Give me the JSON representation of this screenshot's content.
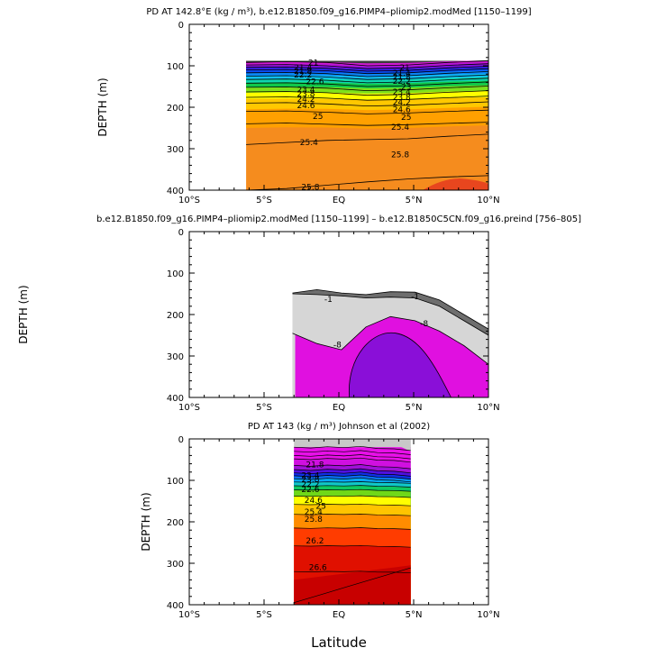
{
  "figure": {
    "xlabel": "Latitude"
  },
  "chart_data": [
    {
      "type": "contour",
      "title": "PD AT 142.8°E (kg / m³), b.e12.B1850.f09_g16.PIMP4–pliomip2.modMed [1150–1199]",
      "xlabel": "",
      "ylabel": "DEPTH (m)",
      "xlim": [
        -10,
        10
      ],
      "ylim": [
        400,
        0
      ],
      "xticks": [
        -10,
        -5,
        0,
        5,
        10
      ],
      "xtick_labels": [
        "10°S",
        "5°S",
        "EQ",
        "5°N",
        "10°N"
      ],
      "yticks": [
        0,
        100,
        200,
        300,
        400
      ],
      "ytick_labels": [
        "0",
        "100",
        "200",
        "300",
        "400"
      ],
      "data_xrange": [
        -6.2,
        10
      ],
      "top_depth": 88,
      "bands": [
        {
          "level": 21.0,
          "color": "#3c3c3c",
          "west": 92,
          "east": 88
        },
        {
          "level": 21.4,
          "color": "#d11ad1",
          "west": 96,
          "east": 93
        },
        {
          "level": 21.8,
          "color": "#b515d8",
          "west": 100,
          "east": 98
        },
        {
          "level": 22.2,
          "color": "#7f10e0",
          "west": 105,
          "east": 103
        },
        {
          "level": 22.6,
          "color": "#3422e6",
          "west": 111,
          "east": 108
        },
        {
          "level": 23.0,
          "color": "#0a4aee",
          "west": 117,
          "east": 113
        },
        {
          "level": 23.4,
          "color": "#0a86f5",
          "west": 124,
          "east": 120
        },
        {
          "level": 23.8,
          "color": "#0fc0f5",
          "west": 132,
          "east": 128
        },
        {
          "level": 24.2,
          "color": "#10d6b0",
          "west": 141,
          "east": 137
        },
        {
          "level": 24.6,
          "color": "#10c84a",
          "west": 152,
          "east": 148
        },
        {
          "level": 25.0,
          "color": "#7ee01c",
          "west": 165,
          "east": 161
        },
        {
          "level": 25.4,
          "color": "#ffff00",
          "west": 180,
          "east": 177
        },
        {
          "level": 25.8,
          "color": "#ffc800",
          "west": 205,
          "east": 200
        },
        {
          "level": 26.2,
          "color": "#ffa000",
          "west": 250,
          "east": 245
        }
      ],
      "deep_color": "#f58c1e",
      "lines": [
        {
          "depths": [
            92,
            90,
            92,
            100,
            98,
            92,
            88
          ]
        },
        {
          "depths": [
            98,
            97,
            100,
            107,
            105,
            99,
            95
          ]
        },
        {
          "depths": [
            104,
            103,
            106,
            113,
            111,
            105,
            101
          ]
        },
        {
          "depths": [
            110,
            109,
            112,
            119,
            117,
            111,
            107
          ]
        },
        {
          "depths": [
            117,
            116,
            119,
            126,
            124,
            118,
            114
          ]
        },
        {
          "depths": [
            125,
            124,
            127,
            133,
            131,
            126,
            122
          ]
        },
        {
          "depths": [
            133,
            132,
            135,
            141,
            139,
            134,
            130
          ]
        },
        {
          "depths": [
            142,
            141,
            144,
            150,
            148,
            143,
            139
          ]
        },
        {
          "depths": [
            152,
            151,
            154,
            160,
            158,
            153,
            149
          ]
        },
        {
          "depths": [
            163,
            162,
            165,
            171,
            169,
            164,
            160
          ]
        },
        {
          "depths": [
            176,
            175,
            178,
            183,
            181,
            177,
            173
          ]
        },
        {
          "depths": [
            190,
            189,
            192,
            197,
            195,
            191,
            187
          ]
        },
        {
          "depths": [
            210,
            209,
            212,
            216,
            214,
            210,
            207
          ]
        },
        {
          "depths": [
            240,
            238,
            241,
            244,
            242,
            239,
            236
          ]
        },
        {
          "depths": [
            290,
            285,
            280,
            278,
            276,
            270,
            265
          ]
        },
        {
          "depths": [
            400,
            396,
            388,
            380,
            373,
            368,
            365
          ]
        }
      ],
      "blob": {
        "color": "#e8461e"
      },
      "labels": [
        {
          "text": "21",
          "x": -1.7,
          "y": 92
        },
        {
          "text": "21.4",
          "x": -2.4,
          "y": 104
        },
        {
          "text": "21.8",
          "x": -2.4,
          "y": 113
        },
        {
          "text": "22.2",
          "x": -2.4,
          "y": 122
        },
        {
          "text": "22.6",
          "x": -1.6,
          "y": 138
        },
        {
          "text": "23.4",
          "x": -2.2,
          "y": 158
        },
        {
          "text": "23.8",
          "x": -2.2,
          "y": 167
        },
        {
          "text": "24.2",
          "x": -2.2,
          "y": 180
        },
        {
          "text": "24.6",
          "x": -2.2,
          "y": 196
        },
        {
          "text": "25",
          "x": -1.4,
          "y": 222
        },
        {
          "text": "25.4",
          "x": -2.0,
          "y": 285
        },
        {
          "text": "25.8",
          "x": -1.9,
          "y": 392
        },
        {
          "text": "21",
          "x": 4.4,
          "y": 104
        },
        {
          "text": "21.4",
          "x": 4.2,
          "y": 117
        },
        {
          "text": "21.8",
          "x": 4.2,
          "y": 127
        },
        {
          "text": "22.2",
          "x": 4.2,
          "y": 137
        },
        {
          "text": "23",
          "x": 4.5,
          "y": 151
        },
        {
          "text": "23.4",
          "x": 4.2,
          "y": 163
        },
        {
          "text": "23.8",
          "x": 4.2,
          "y": 176
        },
        {
          "text": "24.2",
          "x": 4.2,
          "y": 188
        },
        {
          "text": "24.6",
          "x": 4.2,
          "y": 205
        },
        {
          "text": "25",
          "x": 4.5,
          "y": 224
        },
        {
          "text": "25.4",
          "x": 4.1,
          "y": 248
        },
        {
          "text": "25.8",
          "x": 4.1,
          "y": 314
        }
      ]
    },
    {
      "type": "contour",
      "title": "b.e12.B1850.f09_g16.PIMP4–pliomip2.modMed [1150–1199] – b.e12.B1850C5CN.f09_g16.preind [756–805]",
      "xlabel": "",
      "ylabel": "DEPTH (m)",
      "xlim": [
        -10,
        10
      ],
      "ylim": [
        400,
        0
      ],
      "xticks": [
        -10,
        -5,
        0,
        5,
        10
      ],
      "xtick_labels": [
        "10°S",
        "5°S",
        "EQ",
        "5°N",
        "10°N"
      ],
      "yticks": [
        0,
        100,
        200,
        300,
        400
      ],
      "ytick_labels": [
        "0",
        "100",
        "200",
        "300",
        "400"
      ],
      "data_xrange": [
        -3.1,
        10
      ],
      "regions": [
        {
          "name": "0 to -1",
          "color": "#6e6e6e"
        },
        {
          "name": "-1 to -8",
          "color": "#d6d6d6"
        },
        {
          "name": "-8 to -16",
          "color": "#e010e0"
        },
        {
          "name": "below -16",
          "color": "#8a0fd8"
        }
      ],
      "contour_lines": [
        {
          "value": "-1",
          "depths": [
            150,
            152,
            155,
            160,
            158,
            160,
            180,
            215,
            250
          ]
        },
        {
          "value": "-8",
          "depths": [
            245,
            270,
            285,
            230,
            205,
            215,
            240,
            275,
            320
          ]
        }
      ],
      "labels": [
        {
          "text": "-1",
          "x": -0.7,
          "y": 163
        },
        {
          "text": "-1",
          "x": 5.1,
          "y": 157
        },
        {
          "text": "-8",
          "x": -0.1,
          "y": 273
        },
        {
          "text": "-8",
          "x": 5.7,
          "y": 222
        }
      ]
    },
    {
      "type": "contour",
      "title": "PD AT 143 (kg / m³) Johnson et al (2002)",
      "xlabel": "Latitude",
      "ylabel": "DEPTH (m)",
      "xlim": [
        -10,
        10
      ],
      "ylim": [
        400,
        0
      ],
      "xticks": [
        -10,
        -5,
        0,
        5,
        10
      ],
      "xtick_labels": [
        "10°S",
        "5°S",
        "EQ",
        "5°N",
        "10°N"
      ],
      "yticks": [
        0,
        100,
        200,
        300,
        400
      ],
      "ytick_labels": [
        "0",
        "100",
        "200",
        "300",
        "400"
      ],
      "data_xrange": [
        -3.0,
        4.8
      ],
      "surface_color": "#c8c8c8",
      "surface_depths": [
        8,
        5,
        6,
        4,
        4,
        6,
        12,
        30
      ],
      "deep_color": "#c80000",
      "bands": [
        {
          "level": 21.4,
          "color": "#e810e8"
        },
        {
          "level": 21.8,
          "color": "#d010e0"
        },
        {
          "level": 22.2,
          "color": "#a010d8"
        },
        {
          "level": 22.6,
          "color": "#5010e0"
        },
        {
          "level": 23.0,
          "color": "#1030e8"
        },
        {
          "level": 23.4,
          "color": "#0a6ef0"
        },
        {
          "level": 23.8,
          "color": "#08a8f2"
        },
        {
          "level": 24.2,
          "color": "#10c8c8"
        },
        {
          "level": 24.6,
          "color": "#10c860"
        },
        {
          "level": 25.0,
          "color": "#70d818"
        },
        {
          "level": 25.4,
          "color": "#ffff00"
        },
        {
          "level": 25.8,
          "color": "#ffc400"
        },
        {
          "level": 26.2,
          "color": "#ff8c00"
        },
        {
          "level": 26.6,
          "color": "#ff3c00"
        },
        {
          "level": 27.0,
          "color": "#e01000"
        }
      ],
      "band_depths": [
        48,
        64,
        74,
        82,
        89,
        96,
        104,
        113,
        123,
        138,
        158,
        182,
        215,
        258,
        320
      ],
      "labels": [
        {
          "text": "21.8",
          "x": -1.6,
          "y": 62
        },
        {
          "text": "23.4",
          "x": -1.9,
          "y": 88
        },
        {
          "text": "23.8",
          "x": -1.9,
          "y": 98
        },
        {
          "text": "22.2",
          "x": -1.9,
          "y": 110
        },
        {
          "text": "22.6",
          "x": -1.9,
          "y": 122
        },
        {
          "text": "24.6",
          "x": -1.7,
          "y": 148
        },
        {
          "text": "25",
          "x": -1.2,
          "y": 162
        },
        {
          "text": "25.4",
          "x": -1.7,
          "y": 176
        },
        {
          "text": "25.8",
          "x": -1.7,
          "y": 194
        },
        {
          "text": "26.2",
          "x": -1.6,
          "y": 246
        },
        {
          "text": "26.6",
          "x": -1.4,
          "y": 310
        }
      ]
    }
  ]
}
